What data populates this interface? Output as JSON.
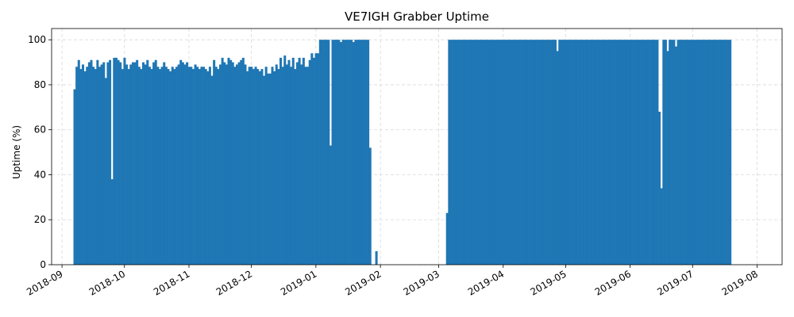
{
  "chart_data": {
    "type": "bar",
    "title": "VE7IGH Grabber Uptime",
    "xlabel": "",
    "ylabel": "Uptime (%)",
    "ylim": [
      0,
      105
    ],
    "xlim": [
      "2018-08-27",
      "2019-08-13"
    ],
    "grid": true,
    "color": "#1f77b4",
    "x_ticks": [
      "2018-09",
      "2018-10",
      "2018-11",
      "2018-12",
      "2019-01",
      "2019-02",
      "2019-03",
      "2019-04",
      "2019-05",
      "2019-06",
      "2019-07",
      "2019-08"
    ],
    "y_ticks": [
      0,
      20,
      40,
      60,
      80,
      100
    ],
    "x_tick_dates": [
      "2018-09-01",
      "2018-10-01",
      "2018-11-01",
      "2018-12-01",
      "2019-01-01",
      "2019-02-01",
      "2019-03-01",
      "2019-04-01",
      "2019-05-01",
      "2019-06-01",
      "2019-07-01",
      "2019-08-01"
    ],
    "series": [
      {
        "segments": [
          {
            "date": "2018-09-07",
            "values": [
              78,
              88,
              91,
              87,
              89,
              86,
              88,
              90,
              91,
              88,
              87,
              91,
              88,
              89,
              90,
              83,
              90,
              91,
              38,
              92,
              92,
              91,
              90,
              87,
              92,
              89,
              87,
              89,
              90,
              90,
              91,
              88,
              87,
              90,
              89,
              91,
              88,
              87,
              90,
              91,
              88,
              87,
              88,
              90,
              88,
              87,
              86,
              88,
              87,
              88,
              89,
              91,
              90,
              89,
              90,
              88,
              88,
              87,
              89,
              88,
              87,
              88,
              88,
              87,
              86,
              88,
              84,
              91,
              88,
              87,
              89,
              92,
              90,
              89,
              92,
              91,
              90,
              88,
              89,
              90,
              91,
              92,
              89,
              86,
              88,
              88,
              87,
              88,
              87,
              86,
              87,
              84,
              88,
              85,
              85,
              88,
              86,
              89,
              87,
              92,
              88,
              93,
              89,
              91,
              88,
              92,
              87,
              90,
              92,
              89,
              92,
              88,
              88,
              91,
              94,
              92,
              94,
              94,
              100,
              100,
              100,
              100,
              100,
              53,
              100,
              100,
              100,
              100,
              99,
              100,
              100,
              100,
              100,
              100,
              99,
              100,
              100,
              100,
              100,
              100,
              100,
              100,
              52,
              0,
              0,
              6
            ]
          },
          {
            "date": "2019-03-05",
            "values": [
              23,
              100,
              100,
              100,
              100,
              100,
              100,
              100,
              100,
              100,
              100,
              100,
              100,
              100,
              100,
              100,
              100,
              100,
              100,
              100,
              100,
              100,
              100,
              100,
              100,
              100,
              100,
              100,
              100,
              100,
              100,
              100,
              100,
              100,
              100,
              100,
              100,
              100,
              100,
              100,
              100,
              100,
              100,
              100,
              100,
              100,
              100,
              100,
              100,
              100,
              100,
              100,
              100,
              95,
              100,
              100,
              100,
              100,
              100,
              100,
              100,
              100,
              100,
              100,
              100,
              100,
              100,
              100,
              100,
              100,
              100,
              100,
              100,
              100,
              100,
              100,
              100,
              100,
              100,
              100,
              100,
              100,
              100,
              100,
              100,
              100,
              100,
              100,
              100,
              100,
              100,
              100,
              100,
              100,
              100,
              100,
              100,
              100,
              100,
              100,
              100,
              100,
              68,
              34,
              100,
              100,
              95,
              100,
              100,
              100,
              97,
              100,
              100,
              100,
              100,
              100,
              100,
              100,
              100,
              100,
              100,
              100,
              100,
              100,
              100,
              100,
              100,
              100,
              100,
              100,
              100,
              100,
              100,
              100,
              100,
              100,
              100
            ]
          }
        ]
      }
    ]
  }
}
